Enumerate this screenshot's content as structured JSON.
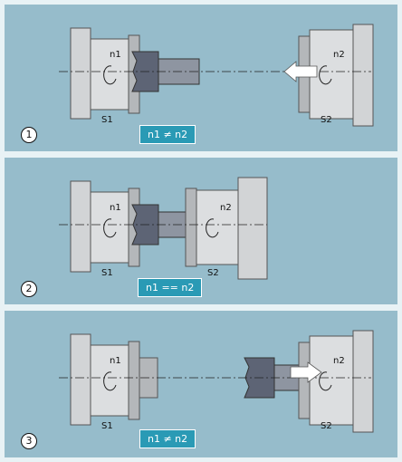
{
  "colors": {
    "panel_bg": "#96bccb",
    "outer_bg": "#e8f2f5",
    "chuck_gray": "#d2d4d6",
    "chuck_dark": "#b4b7ba",
    "workpiece": "#5d6475",
    "relation_box": "#2a9ab5"
  },
  "panels": [
    {
      "step": "1",
      "spindle_left": "S1",
      "spindle_right": "S2",
      "speed_left": "n1",
      "speed_right": "n2",
      "relation": "n1 ≠ n2"
    },
    {
      "step": "2",
      "spindle_left": "S1",
      "spindle_right": "S2",
      "speed_left": "n1",
      "speed_right": "n2",
      "relation": "n1 == n2"
    },
    {
      "step": "3",
      "spindle_left": "S1",
      "spindle_right": "S2",
      "speed_left": "n1",
      "speed_right": "n2",
      "relation": "n1 ≠ n2"
    }
  ]
}
